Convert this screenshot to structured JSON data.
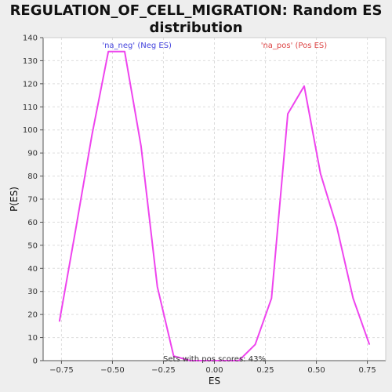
{
  "chart_data": {
    "type": "line",
    "title": "REGULATION_OF_CELL_MIGRATION: Random ES distribution",
    "title_lines": [
      "REGULATION_OF_CELL_MIGRATION: Random ES",
      "distribution"
    ],
    "xlabel": "ES",
    "ylabel": "P(ES)",
    "xlim": [
      -0.84,
      0.84
    ],
    "ylim": [
      0,
      140
    ],
    "x_ticks": [
      -0.75,
      -0.5,
      -0.25,
      0.0,
      0.25,
      0.5,
      0.75
    ],
    "x_tick_labels": [
      "−0.75",
      "−0.50",
      "−0.25",
      "0.00",
      "0.25",
      "0.50",
      "0.75"
    ],
    "y_ticks": [
      0,
      10,
      20,
      30,
      40,
      50,
      60,
      70,
      80,
      90,
      100,
      110,
      120,
      130,
      140
    ],
    "grid": true,
    "series": [
      {
        "color": "#ee44ee",
        "x": [
          -0.76,
          -0.68,
          -0.6,
          -0.52,
          -0.44,
          -0.36,
          -0.28,
          -0.2,
          -0.12,
          -0.04,
          0.04,
          0.12,
          0.2,
          0.28,
          0.36,
          0.44,
          0.52,
          0.6,
          0.68,
          0.76
        ],
        "y": [
          17,
          57,
          98,
          134,
          134,
          93,
          32,
          2,
          0,
          0,
          0,
          0,
          7,
          27,
          107,
          119,
          81,
          58,
          27,
          7
        ]
      }
    ],
    "annotations": [
      {
        "text": "'na_neg' (Neg ES)",
        "x": -0.38,
        "y": 137,
        "color": "#4444dd"
      },
      {
        "text": "'na_pos' (Pos ES)",
        "x": 0.39,
        "y": 137,
        "color": "#dd4444"
      },
      {
        "text": "Sets with pos scores: 43%",
        "x": 0.0,
        "y": 1,
        "color": "#333333"
      }
    ],
    "colors": {
      "background": "#eeeeee",
      "plot_background": "#ffffff",
      "grid": "#dddddd",
      "axis": "#555555"
    }
  }
}
